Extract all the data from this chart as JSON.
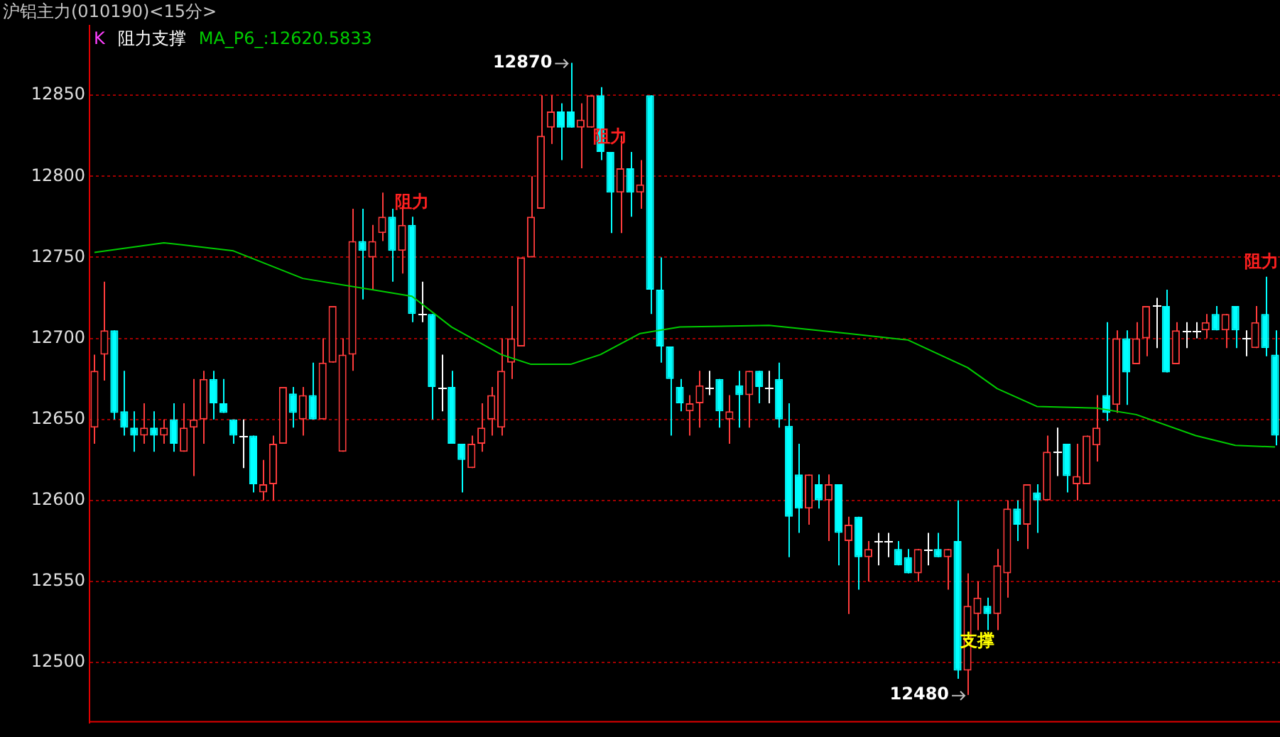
{
  "chart_data": {
    "type": "candlestick",
    "title": "沪铝主力(010190)<15分>",
    "categories": [
      null,
      null,
      null,
      null,
      null,
      null,
      null,
      null,
      null,
      null,
      null,
      null,
      null,
      null,
      null,
      null,
      null,
      null,
      null,
      null,
      null,
      null,
      null,
      null,
      null,
      null,
      null,
      null,
      null,
      null,
      null,
      null,
      null,
      null,
      null,
      null,
      null,
      null,
      null,
      null,
      null,
      null,
      null,
      null,
      null,
      null,
      null,
      null,
      null,
      null,
      null,
      null,
      null,
      null,
      null,
      null,
      null,
      null,
      null,
      null,
      null,
      null,
      null,
      null,
      null,
      null,
      null,
      null,
      null,
      null,
      null,
      null,
      null,
      null,
      null,
      null,
      null,
      null,
      null,
      null,
      null,
      null,
      null,
      null,
      null,
      null,
      null,
      null,
      null,
      null,
      null,
      null,
      null,
      null,
      null,
      null,
      null,
      null,
      null,
      null,
      null,
      null,
      null,
      null,
      null,
      null,
      null,
      null,
      null,
      null,
      null,
      null,
      null,
      null,
      null,
      null,
      null,
      null,
      null,
      null
    ],
    "ohlc": [
      [
        12645,
        12690,
        12635,
        12680
      ],
      [
        12690,
        12735,
        12674,
        12705
      ],
      [
        12705,
        12705,
        12650,
        12654
      ],
      [
        12655,
        12680,
        12640,
        12645
      ],
      [
        12645,
        12655,
        12630,
        12640
      ],
      [
        12640,
        12660,
        12635,
        12645
      ],
      [
        12645,
        12655,
        12630,
        12640
      ],
      [
        12640,
        12650,
        12635,
        12645
      ],
      [
        12650,
        12660,
        12630,
        12635
      ],
      [
        12630,
        12660,
        12630,
        12645
      ],
      [
        12645,
        12675,
        12615,
        12650
      ],
      [
        12650,
        12680,
        12635,
        12675
      ],
      [
        12675,
        12680,
        12650,
        12660
      ],
      [
        12660,
        12675,
        12654,
        12654
      ],
      [
        12650,
        12650,
        12635,
        12640
      ],
      [
        12640,
        12650,
        12620,
        12640
      ],
      [
        12640,
        12640,
        12605,
        12610
      ],
      [
        12605,
        12625,
        12600,
        12610
      ],
      [
        12610,
        12640,
        12600,
        12635
      ],
      [
        12635,
        12670,
        12635,
        12670
      ],
      [
        12666,
        12670,
        12645,
        12654
      ],
      [
        12650,
        12670,
        12640,
        12665
      ],
      [
        12665,
        12685,
        12650,
        12650
      ],
      [
        12650,
        12700,
        12650,
        12685
      ],
      [
        12685,
        12720,
        12685,
        12720
      ],
      [
        12630,
        12700,
        12630,
        12690
      ],
      [
        12690,
        12780,
        12680,
        12760
      ],
      [
        12760,
        12780,
        12724,
        12754
      ],
      [
        12750,
        12770,
        12730,
        12760
      ],
      [
        12765,
        12790,
        12760,
        12775
      ],
      [
        12775,
        12780,
        12735,
        12754
      ],
      [
        12754,
        12782,
        12740,
        12770
      ],
      [
        12770,
        12775,
        12710,
        12715
      ],
      [
        12715,
        12735,
        12710,
        12715
      ],
      [
        12715,
        12715,
        12650,
        12670
      ],
      [
        12670,
        12690,
        12655,
        12670
      ],
      [
        12670,
        12680,
        12635,
        12635
      ],
      [
        12635,
        12635,
        12605,
        12625
      ],
      [
        12620,
        12640,
        12620,
        12635
      ],
      [
        12635,
        12660,
        12630,
        12645
      ],
      [
        12650,
        12670,
        12640,
        12665
      ],
      [
        12645,
        12700,
        12640,
        12680
      ],
      [
        12685,
        12720,
        12675,
        12700
      ],
      [
        12695,
        12750,
        12695,
        12750
      ],
      [
        12750,
        12800,
        12750,
        12775
      ],
      [
        12780,
        12850,
        12780,
        12825
      ],
      [
        12830,
        12850,
        12820,
        12840
      ],
      [
        12840,
        12845,
        12810,
        12830
      ],
      [
        12840,
        12870,
        12830,
        12830
      ],
      [
        12830,
        12845,
        12805,
        12835
      ],
      [
        12830,
        12850,
        12830,
        12850
      ],
      [
        12850,
        12855,
        12810,
        12815
      ],
      [
        12815,
        12815,
        12765,
        12790
      ],
      [
        12790,
        12825,
        12765,
        12805
      ],
      [
        12805,
        12815,
        12775,
        12790
      ],
      [
        12790,
        12810,
        12780,
        12795
      ],
      [
        12850,
        12850,
        12715,
        12730
      ],
      [
        12730,
        12750,
        12685,
        12695
      ],
      [
        12695,
        12695,
        12640,
        12675
      ],
      [
        12670,
        12675,
        12655,
        12660
      ],
      [
        12655,
        12665,
        12640,
        12660
      ],
      [
        12660,
        12680,
        12645,
        12671
      ],
      [
        12670,
        12680,
        12665,
        12670
      ],
      [
        12675,
        12675,
        12645,
        12655
      ],
      [
        12650,
        12665,
        12635,
        12655
      ],
      [
        12671,
        12680,
        12645,
        12665
      ],
      [
        12665,
        12680,
        12645,
        12680
      ],
      [
        12680,
        12680,
        12660,
        12670
      ],
      [
        12670,
        12680,
        12660,
        12670
      ],
      [
        12675,
        12685,
        12645,
        12650
      ],
      [
        12646,
        12660,
        12565,
        12590
      ],
      [
        12616,
        12635,
        12580,
        12595
      ],
      [
        12595,
        12616,
        12585,
        12616
      ],
      [
        12610,
        12616,
        12595,
        12600
      ],
      [
        12600,
        12616,
        12575,
        12610
      ],
      [
        12610,
        12610,
        12560,
        12580
      ],
      [
        12575,
        12590,
        12530,
        12585
      ],
      [
        12590,
        12590,
        12545,
        12565
      ],
      [
        12565,
        12575,
        12550,
        12570
      ],
      [
        12575,
        12580,
        12560,
        12575
      ],
      [
        12575,
        12580,
        12565,
        12575
      ],
      [
        12570,
        12575,
        12560,
        12560
      ],
      [
        12565,
        12570,
        12555,
        12555
      ],
      [
        12555,
        12570,
        12550,
        12570
      ],
      [
        12570,
        12580,
        12560,
        12570
      ],
      [
        12570,
        12580,
        12565,
        12565
      ],
      [
        12565,
        12570,
        12545,
        12570
      ],
      [
        12575,
        12600,
        12490,
        12495
      ],
      [
        12495,
        12555,
        12480,
        12535
      ],
      [
        12530,
        12550,
        12520,
        12540
      ],
      [
        12535,
        12540,
        12520,
        12530
      ],
      [
        12530,
        12570,
        12520,
        12560
      ],
      [
        12555,
        12600,
        12540,
        12595
      ],
      [
        12595,
        12600,
        12575,
        12585
      ],
      [
        12585,
        12610,
        12570,
        12610
      ],
      [
        12605,
        12610,
        12580,
        12600
      ],
      [
        12600,
        12640,
        12600,
        12630
      ],
      [
        12630,
        12645,
        12615,
        12630
      ],
      [
        12635,
        12635,
        12605,
        12615
      ],
      [
        12610,
        12635,
        12600,
        12615
      ],
      [
        12610,
        12640,
        12610,
        12640
      ],
      [
        12634,
        12665,
        12624,
        12645
      ],
      [
        12665,
        12710,
        12649,
        12654
      ],
      [
        12659,
        12705,
        12654,
        12700
      ],
      [
        12700,
        12705,
        12659,
        12679
      ],
      [
        12684,
        12710,
        12684,
        12700
      ],
      [
        12700,
        12720,
        12689,
        12720
      ],
      [
        12720,
        12725,
        12694,
        12720
      ],
      [
        12720,
        12730,
        12679,
        12679
      ],
      [
        12684,
        12710,
        12684,
        12705
      ],
      [
        12705,
        12710,
        12694,
        12705
      ],
      [
        12705,
        12710,
        12700,
        12705
      ],
      [
        12705,
        12715,
        12700,
        12710
      ],
      [
        12715,
        12720,
        12705,
        12705
      ],
      [
        12705,
        12715,
        12694,
        12715
      ],
      [
        12720,
        12720,
        12694,
        12705
      ],
      [
        12700,
        12705,
        12689,
        12700
      ],
      [
        12694,
        12720,
        12694,
        12710
      ],
      [
        12715,
        12738,
        12689,
        12694
      ],
      [
        12690,
        12705,
        12634,
        12640
      ]
    ],
    "series": [
      {
        "type": "line",
        "name": "MA_P6_:12620.5833",
        "color": "#00cc00",
        "values": [
          12753,
          null,
          null,
          null,
          null,
          null,
          null,
          12759,
          null,
          null,
          null,
          null,
          null,
          null,
          12754,
          null,
          null,
          null,
          null,
          null,
          null,
          12737,
          null,
          null,
          null,
          null,
          null,
          null,
          12730,
          null,
          null,
          null,
          12726,
          null,
          null,
          null,
          12707,
          null,
          null,
          null,
          null,
          12690,
          null,
          null,
          12684,
          null,
          null,
          null,
          12684,
          null,
          null,
          12690,
          null,
          null,
          null,
          12703,
          null,
          null,
          null,
          12707,
          null,
          null,
          null,
          null,
          null,
          null,
          null,
          null,
          12708,
          null,
          null,
          null,
          null,
          null,
          null,
          null,
          12703,
          null,
          null,
          null,
          null,
          null,
          12699,
          null,
          null,
          null,
          null,
          null,
          12682,
          null,
          null,
          12669,
          null,
          null,
          null,
          12658,
          null,
          null,
          null,
          null,
          null,
          12657,
          null,
          null,
          null,
          12653,
          null,
          null,
          null,
          null,
          null,
          12640,
          null,
          null,
          null,
          12634,
          null,
          null,
          null,
          12633
        ]
      }
    ],
    "ylim": [
      12463,
      12893
    ],
    "yticks": [
      12500,
      12550,
      12600,
      12650,
      12700,
      12750,
      12800,
      12850
    ],
    "grid": "y",
    "legend": "top left",
    "tick_labels": "y",
    "annotations": [
      "12870",
      "12480",
      {
        "text": "阻力",
        "y": 12775
      },
      {
        "text": "阻力",
        "y": 12815
      },
      {
        "text": "阻力",
        "y": 12738
      },
      {
        "text": "支撑",
        "y": 12520
      },
      "K",
      "阻力支撑"
    ]
  }
}
